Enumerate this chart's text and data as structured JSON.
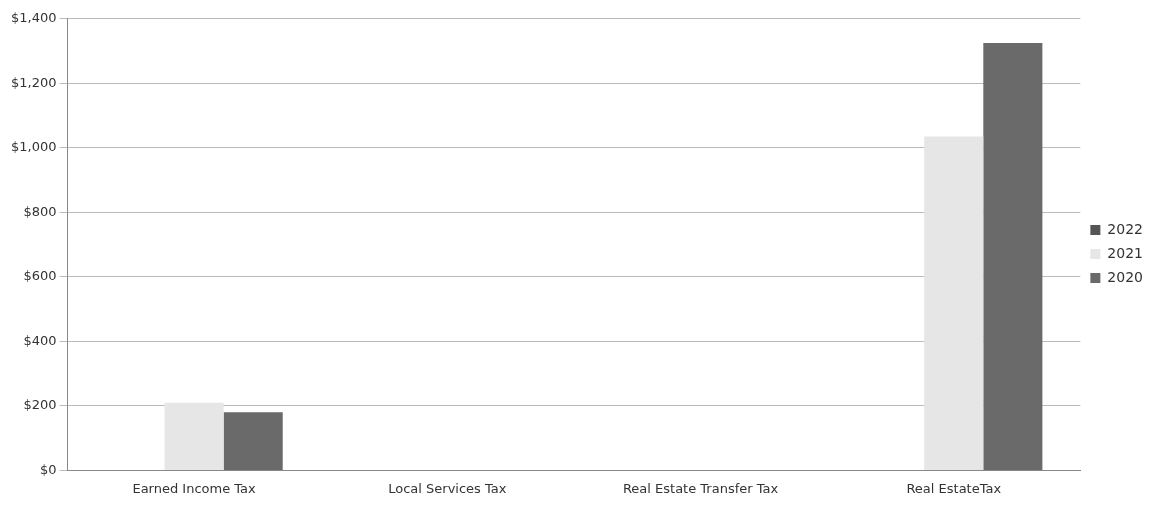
{
  "chart_data": {
    "type": "bar",
    "categories": [
      "Earned Income Tax",
      "Local Services Tax",
      "Real Estate Transfer Tax",
      "Real EstateTax"
    ],
    "series": [
      {
        "name": "2022",
        "color": "#555555",
        "values": [
          null,
          null,
          null,
          null
        ]
      },
      {
        "name": "2021",
        "color": "#e6e6e6",
        "values": [
          210,
          null,
          null,
          1035
        ]
      },
      {
        "name": "2020",
        "color": "#6a6a6a",
        "values": [
          180,
          null,
          null,
          1325
        ]
      }
    ],
    "ylim": [
      0,
      1400
    ],
    "yticks": [
      {
        "value": 0,
        "label": "$0"
      },
      {
        "value": 200,
        "label": "$200"
      },
      {
        "value": 400,
        "label": "$400"
      },
      {
        "value": 600,
        "label": "$600"
      },
      {
        "value": 800,
        "label": "$800"
      },
      {
        "value": 1000,
        "label": "$1,000"
      },
      {
        "value": 1200,
        "label": "$1,200"
      },
      {
        "value": 1400,
        "label": "$1,400"
      }
    ],
    "grid": "y",
    "legend": "right"
  }
}
